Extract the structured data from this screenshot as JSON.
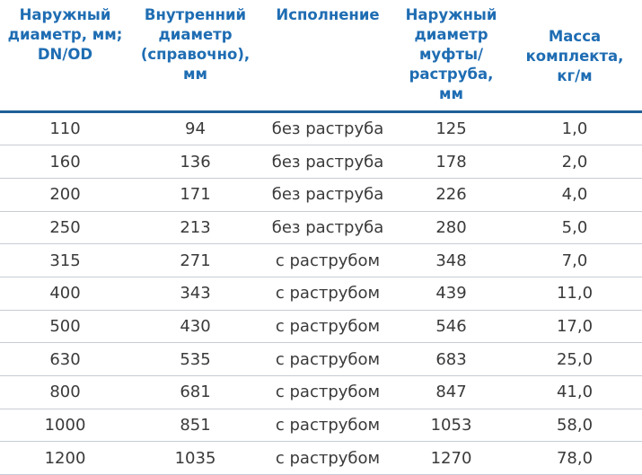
{
  "table": {
    "headers": [
      "Наружный\nдиаметр, мм;\nDN/OD",
      "Внутренний\nдиаметр\n(справочно),\nмм",
      "Исполнение",
      "Наружный\nдиаметр\nмуфты/\nраструба,\nмм",
      "Масса\nкомплекта,\nкг/м"
    ],
    "rows": [
      [
        110,
        94,
        "без раструба",
        125,
        "1,0"
      ],
      [
        160,
        136,
        "без раструба",
        178,
        "2,0"
      ],
      [
        200,
        171,
        "без раструба",
        226,
        "4,0"
      ],
      [
        250,
        213,
        "без раструба",
        280,
        "5,0"
      ],
      [
        315,
        271,
        "с раструбом",
        348,
        "7,0"
      ],
      [
        400,
        343,
        "с раструбом",
        439,
        "11,0"
      ],
      [
        500,
        430,
        "с раструбом",
        546,
        "17,0"
      ],
      [
        630,
        535,
        "с раструбом",
        683,
        "25,0"
      ],
      [
        800,
        681,
        "с раструбом",
        847,
        "41,0"
      ],
      [
        1000,
        851,
        "с раструбом",
        1053,
        "58,0"
      ],
      [
        1200,
        1035,
        "с раструбом",
        1270,
        "78,0"
      ]
    ]
  }
}
